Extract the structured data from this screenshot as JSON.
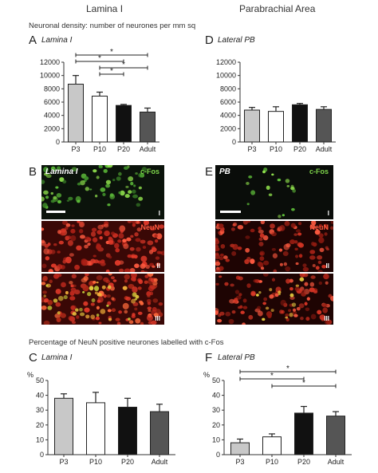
{
  "header": {
    "left_column": "Lamina I",
    "right_column": "Parabrachial Area"
  },
  "density_title": "Neuronal density: number of neurones per mm sq",
  "percent_title": "Percentage of NeuN positive neurones labelled with c-Fos",
  "panels": {
    "A": {
      "letter": "A",
      "name": "Lamina I"
    },
    "B": {
      "letter": "B",
      "name": "Lamina I",
      "stain1": "c-Fos",
      "stain2": "NeuN",
      "layers": [
        "I",
        "II",
        "III"
      ]
    },
    "C": {
      "letter": "C",
      "name": "Lamina I"
    },
    "D": {
      "letter": "D",
      "name": "Lateral PB"
    },
    "E": {
      "letter": "E",
      "name": "PB",
      "stain1": "c-Fos",
      "stain2": "NeuN",
      "layers": [
        "I",
        "II",
        "III"
      ]
    },
    "F": {
      "letter": "F",
      "name": "Lateral PB"
    }
  },
  "colors": {
    "P3": "#c8c8c8",
    "P10": "#ffffff",
    "P20": "#111111",
    "Adult": "#555555",
    "cfos": "#7dd34a",
    "neun": "#e23a2a"
  },
  "chart_data": [
    {
      "id": "A",
      "type": "bar",
      "categories": [
        "P3",
        "P10",
        "P20",
        "Adult"
      ],
      "values": [
        8700,
        6900,
        5500,
        4500
      ],
      "errors": [
        1300,
        600,
        150,
        600
      ],
      "ylim": [
        0,
        12000
      ],
      "yticks": [
        0,
        2000,
        4000,
        6000,
        8000,
        10000,
        12000
      ],
      "ylabel": "",
      "significance": [
        {
          "from": 0,
          "to": 3,
          "label": "*"
        },
        {
          "from": 0,
          "to": 2,
          "label": "*"
        },
        {
          "from": 1,
          "to": 3,
          "label": "*"
        },
        {
          "from": 1,
          "to": 2,
          "label": "*"
        }
      ]
    },
    {
      "id": "D",
      "type": "bar",
      "categories": [
        "P3",
        "P10",
        "P20",
        "Adult"
      ],
      "values": [
        4800,
        4600,
        5600,
        4900
      ],
      "errors": [
        400,
        700,
        200,
        400
      ],
      "ylim": [
        0,
        12000
      ],
      "yticks": [
        0,
        2000,
        4000,
        6000,
        8000,
        10000,
        12000
      ],
      "ylabel": "",
      "significance": []
    },
    {
      "id": "C",
      "type": "bar",
      "categories": [
        "P3",
        "P10",
        "P20",
        "Adult"
      ],
      "values": [
        38,
        35,
        32,
        29
      ],
      "errors": [
        3,
        7,
        6,
        5
      ],
      "ylim": [
        0,
        50
      ],
      "yticks": [
        0,
        10,
        20,
        30,
        40,
        50
      ],
      "ylabel": "%",
      "significance": []
    },
    {
      "id": "F",
      "type": "bar",
      "categories": [
        "P3",
        "P10",
        "P20",
        "Adult"
      ],
      "values": [
        8,
        12,
        28,
        26
      ],
      "errors": [
        2.5,
        2,
        4.5,
        3
      ],
      "ylim": [
        0,
        50
      ],
      "yticks": [
        0,
        10,
        20,
        30,
        40,
        50
      ],
      "ylabel": "%",
      "significance": [
        {
          "from": 0,
          "to": 3,
          "label": "*"
        },
        {
          "from": 0,
          "to": 2,
          "label": "*"
        },
        {
          "from": 1,
          "to": 3,
          "label": "*"
        }
      ]
    }
  ]
}
